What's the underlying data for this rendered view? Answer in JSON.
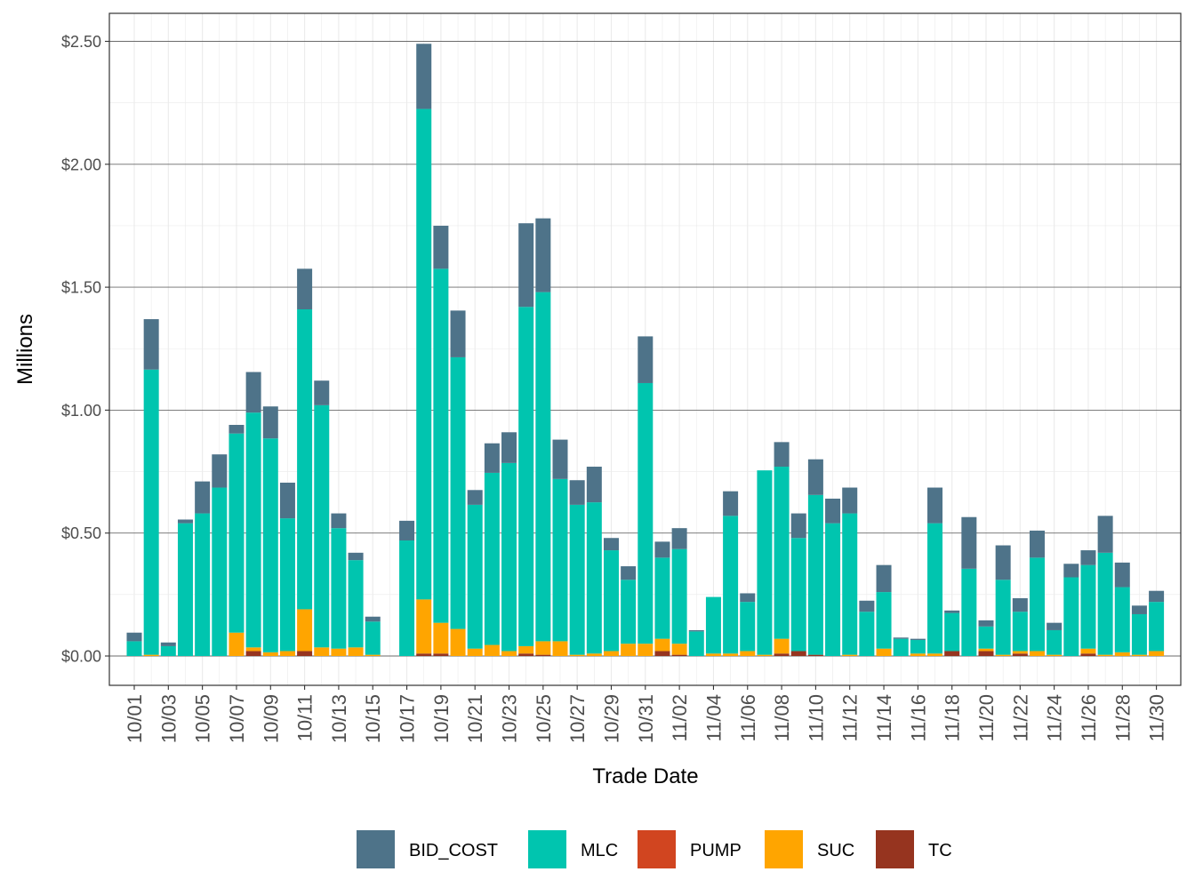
{
  "chart_data": {
    "type": "bar",
    "stacked": true,
    "xlabel": "Trade Date",
    "ylabel": "Millions",
    "ylim": [
      0,
      2.6
    ],
    "y_ticks": [
      {
        "value": 0.0,
        "label": "$0.00"
      },
      {
        "value": 0.5,
        "label": "$0.50"
      },
      {
        "value": 1.0,
        "label": "$1.00"
      },
      {
        "value": 1.5,
        "label": "$1.50"
      },
      {
        "value": 2.0,
        "label": "$2.00"
      },
      {
        "value": 2.5,
        "label": "$2.50"
      }
    ],
    "x_tick_labels": [
      "10/01",
      "10/03",
      "10/05",
      "10/07",
      "10/09",
      "10/11",
      "10/13",
      "10/15",
      "10/17",
      "10/19",
      "10/21",
      "10/23",
      "10/25",
      "10/27",
      "10/29",
      "10/31",
      "11/02",
      "11/04",
      "11/06",
      "11/08",
      "11/10",
      "11/12",
      "11/14",
      "11/16",
      "11/18",
      "11/20",
      "11/22",
      "11/24",
      "11/26",
      "11/28",
      "11/30"
    ],
    "grid": true,
    "legend_position": "bottom",
    "categories": [
      "10/01",
      "10/02",
      "10/03",
      "10/04",
      "10/05",
      "10/06",
      "10/07",
      "10/08",
      "10/09",
      "10/10",
      "10/11",
      "10/12",
      "10/13",
      "10/14",
      "10/15",
      "10/16",
      "10/17",
      "10/18",
      "10/19",
      "10/20",
      "10/21",
      "10/22",
      "10/23",
      "10/24",
      "10/25",
      "10/26",
      "10/27",
      "10/28",
      "10/29",
      "10/30",
      "10/31",
      "11/01",
      "11/02",
      "11/03",
      "11/04",
      "11/05",
      "11/06",
      "11/07",
      "11/08",
      "11/09",
      "11/10",
      "11/11",
      "11/12",
      "11/13",
      "11/14",
      "11/15",
      "11/16",
      "11/17",
      "11/18",
      "11/19",
      "11/20",
      "11/21",
      "11/22",
      "11/23",
      "11/24",
      "11/25",
      "11/26",
      "11/27",
      "11/28",
      "11/29",
      "11/30"
    ],
    "series": [
      {
        "name": "TC",
        "color": "#96341F",
        "values": [
          0,
          0,
          0,
          0,
          0,
          0,
          0,
          0.02,
          0,
          0,
          0.02,
          0,
          0,
          0,
          0,
          0,
          0,
          0.01,
          0.01,
          0,
          0,
          0,
          0,
          0.01,
          0.005,
          0,
          0,
          0,
          0,
          0,
          0,
          0.02,
          0.005,
          0,
          0,
          0,
          0,
          0,
          0.01,
          0.02,
          0.005,
          0,
          0,
          0,
          0,
          0,
          0,
          0,
          0.02,
          0,
          0.02,
          0,
          0.01,
          0,
          0,
          0,
          0.01,
          0,
          0,
          0,
          0
        ]
      },
      {
        "name": "PUMP",
        "color": "#D14520",
        "values": [
          0,
          0,
          0,
          0,
          0,
          0,
          0,
          0,
          0,
          0,
          0,
          0,
          0,
          0,
          0,
          0,
          0,
          0,
          0,
          0,
          0,
          0,
          0,
          0,
          0,
          0,
          0,
          0,
          0,
          0,
          0,
          0,
          0,
          0,
          0,
          0,
          0,
          0,
          0,
          0,
          0,
          0,
          0,
          0,
          0,
          0,
          0,
          0,
          0,
          0,
          0,
          0,
          0,
          0,
          0,
          0,
          0,
          0,
          0,
          0,
          0
        ]
      },
      {
        "name": "SUC",
        "color": "#FFA500",
        "values": [
          0,
          0.005,
          0,
          0,
          0,
          0,
          0.095,
          0.015,
          0.015,
          0.02,
          0.17,
          0.035,
          0.03,
          0.035,
          0.005,
          0,
          0,
          0.22,
          0.125,
          0.11,
          0.03,
          0.045,
          0.02,
          0.03,
          0.055,
          0.06,
          0.005,
          0.01,
          0.02,
          0.05,
          0.05,
          0.05,
          0.045,
          0,
          0.01,
          0.01,
          0.02,
          0.005,
          0.06,
          0,
          0,
          0,
          0.005,
          0,
          0.03,
          0,
          0.01,
          0.01,
          0,
          0,
          0.01,
          0.005,
          0.01,
          0.02,
          0.005,
          0,
          0.02,
          0.005,
          0.015,
          0.005,
          0.02
        ]
      },
      {
        "name": "MLC",
        "color": "#00C5AF",
        "values": [
          0.06,
          1.16,
          0.04,
          0.54,
          0.58,
          0.685,
          0.81,
          0.955,
          0.87,
          0.54,
          1.22,
          0.985,
          0.49,
          0.355,
          0.135,
          0,
          0.47,
          1.995,
          1.44,
          1.105,
          0.585,
          0.7,
          0.765,
          1.38,
          1.42,
          0.66,
          0.61,
          0.615,
          0.41,
          0.26,
          1.06,
          0.33,
          0.385,
          0.1,
          0.23,
          0.56,
          0.2,
          0.75,
          0.7,
          0.46,
          0.65,
          0.54,
          0.575,
          0.18,
          0.23,
          0.07,
          0.055,
          0.53,
          0.155,
          0.355,
          0.09,
          0.305,
          0.16,
          0.38,
          0.1,
          0.32,
          0.34,
          0.415,
          0.265,
          0.165,
          0.2
        ]
      },
      {
        "name": "BID_COST",
        "color": "#4E7389",
        "values": [
          0.035,
          0.205,
          0.015,
          0.015,
          0.13,
          0.135,
          0.035,
          0.165,
          0.13,
          0.145,
          0.165,
          0.1,
          0.06,
          0.03,
          0.02,
          0,
          0.08,
          0.265,
          0.175,
          0.19,
          0.06,
          0.12,
          0.125,
          0.34,
          0.3,
          0.16,
          0.1,
          0.145,
          0.05,
          0.055,
          0.19,
          0.065,
          0.085,
          0.005,
          0,
          0.1,
          0.035,
          0,
          0.1,
          0.1,
          0.145,
          0.1,
          0.105,
          0.045,
          0.11,
          0.005,
          0.005,
          0.145,
          0.01,
          0.21,
          0.025,
          0.14,
          0.055,
          0.11,
          0.03,
          0.055,
          0.06,
          0.15,
          0.1,
          0.035,
          0.045
        ]
      }
    ],
    "legend_order": [
      "BID_COST",
      "MLC",
      "PUMP",
      "SUC",
      "TC"
    ]
  }
}
